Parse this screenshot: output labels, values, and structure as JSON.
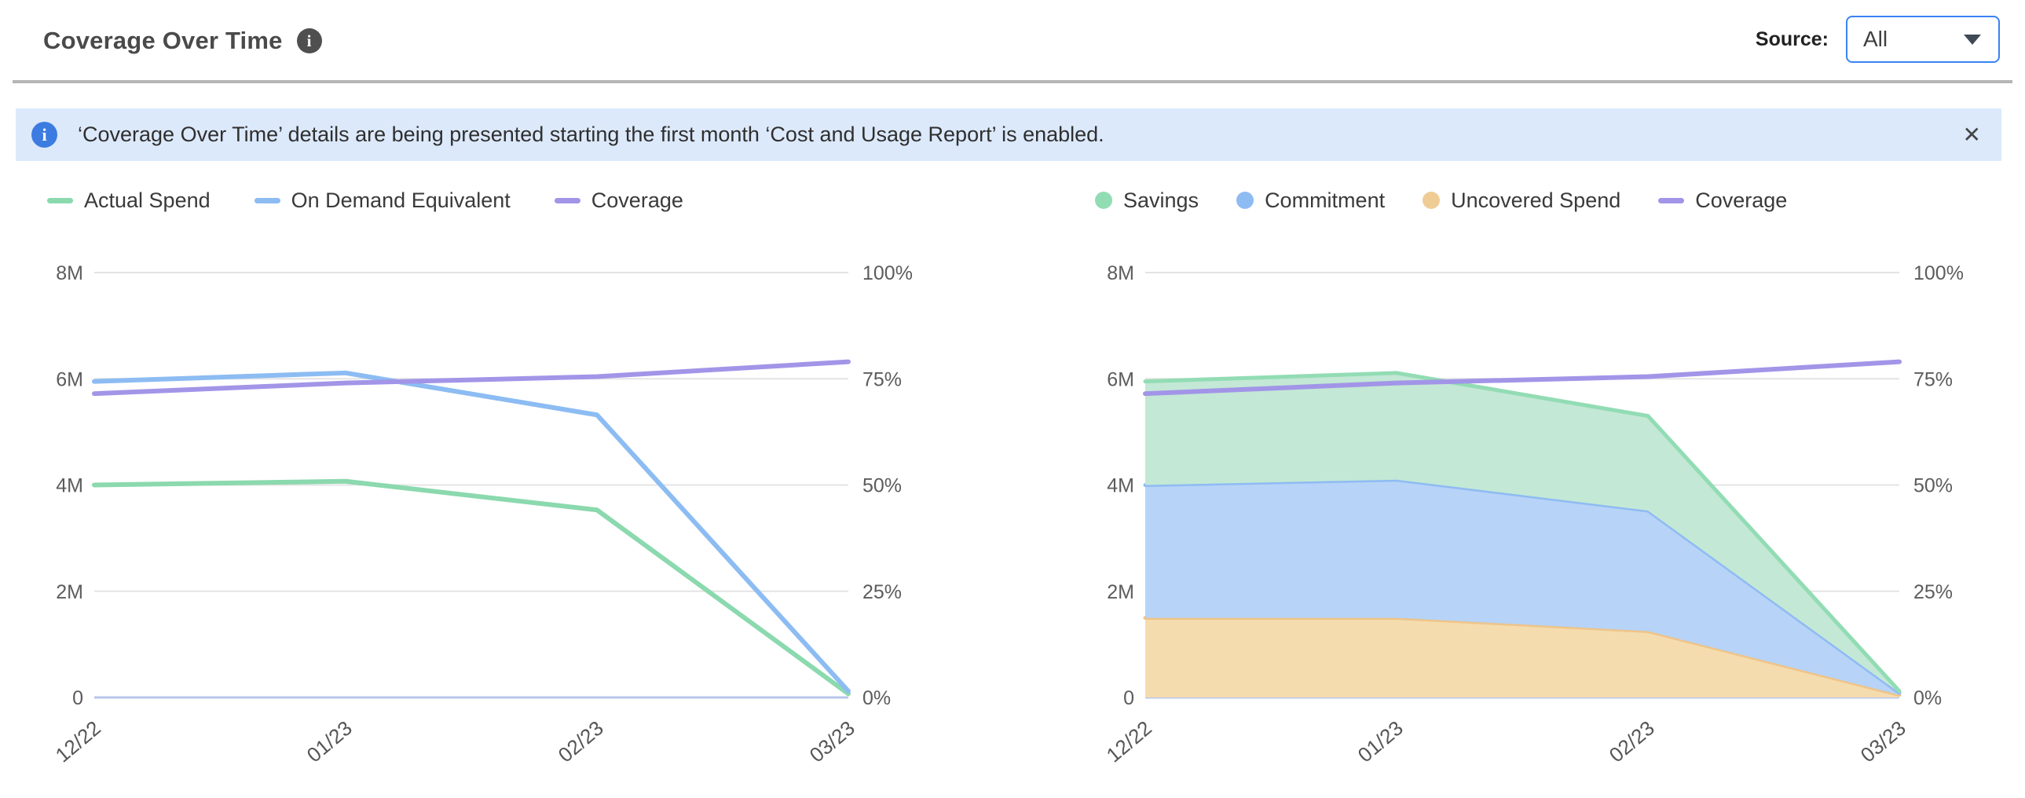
{
  "header": {
    "title": "Coverage Over Time",
    "title_info_icon": "i",
    "source_label": "Source:",
    "source_value": "All"
  },
  "banner": {
    "icon": "i",
    "text": "‘Coverage Over Time’ details are being presented starting the first month ‘Cost and Usage Report’ is enabled.",
    "close_glyph": "✕"
  },
  "colors": {
    "accent_blue": "#3b82f6",
    "banner_bg": "#dce9fb",
    "banner_icon": "#3c7ce0",
    "divider": "#b5b5b5",
    "grid": "#e4e4e4",
    "baseline": "#b9c6ee",
    "axis_text": "#5c5c5c",
    "green": "#8bd9ae",
    "blue": "#8cbcf2",
    "purple": "#a295e8",
    "orange": "#eec489"
  },
  "chart_data": [
    {
      "name": "coverage-line-chart",
      "type": "line",
      "title": "",
      "categories": [
        "12/22",
        "01/23",
        "02/23",
        "03/23"
      ],
      "left_axis": {
        "ticks": [
          "8M",
          "6M",
          "4M",
          "2M",
          "0"
        ],
        "max": 8,
        "unit": "M USD"
      },
      "right_axis": {
        "ticks": [
          "100%",
          "75%",
          "50%",
          "25%",
          "0%"
        ],
        "max": 100,
        "unit": "%"
      },
      "grid": true,
      "legend_position": "top-left",
      "legend": [
        {
          "label": "Actual Spend",
          "marker": "dash",
          "color": "#8bd9ae"
        },
        {
          "label": "On Demand Equivalent",
          "marker": "dash",
          "color": "#8cbcf2"
        },
        {
          "label": "Coverage",
          "marker": "dash",
          "color": "#a295e8"
        }
      ],
      "series": [
        {
          "name": "Actual Spend",
          "axis": "left",
          "color": "#8bd9ae",
          "values": [
            4.0,
            4.07,
            3.53,
            0.07
          ]
        },
        {
          "name": "On Demand Equivalent",
          "axis": "left",
          "color": "#8cbcf2",
          "values": [
            5.95,
            6.11,
            5.32,
            0.12
          ]
        },
        {
          "name": "Coverage",
          "axis": "right",
          "color": "#a295e8",
          "values": [
            71.5,
            74,
            75.5,
            79
          ]
        }
      ]
    },
    {
      "name": "coverage-area-chart",
      "type": "area",
      "title": "",
      "categories": [
        "12/22",
        "01/23",
        "02/23",
        "03/23"
      ],
      "left_axis": {
        "ticks": [
          "8M",
          "6M",
          "4M",
          "2M",
          "0"
        ],
        "max": 8,
        "unit": "M USD"
      },
      "right_axis": {
        "ticks": [
          "100%",
          "75%",
          "50%",
          "25%",
          "0%"
        ],
        "max": 100,
        "unit": "%"
      },
      "grid": true,
      "legend_position": "top-left",
      "legend": [
        {
          "label": "Savings",
          "marker": "circle",
          "color": "#92dcb4"
        },
        {
          "label": "Commitment",
          "marker": "circle",
          "color": "#8fbbf3"
        },
        {
          "label": "Uncovered Spend",
          "marker": "circle",
          "color": "#f0cc95"
        },
        {
          "label": "Coverage",
          "marker": "dash",
          "color": "#a295e8"
        }
      ],
      "series": [
        {
          "name": "Uncovered Spend",
          "axis": "left",
          "stacked": true,
          "color": "#eec489",
          "fill": "#f5dcae",
          "values": [
            1.5,
            1.5,
            1.25,
            0.05
          ]
        },
        {
          "name": "Commitment",
          "axis": "left",
          "stacked": true,
          "color": "#8fbbf3",
          "fill": "#b7d3f7",
          "values": [
            2.5,
            2.6,
            2.27,
            0.04
          ]
        },
        {
          "name": "Savings",
          "axis": "left",
          "stacked": true,
          "color": "#92dcb4",
          "fill": "#c3e8d5",
          "values": [
            1.95,
            2.01,
            1.78,
            0.03
          ]
        },
        {
          "name": "Coverage",
          "axis": "right",
          "color": "#a295e8",
          "values": [
            71.5,
            74,
            75.5,
            79
          ]
        }
      ]
    }
  ]
}
